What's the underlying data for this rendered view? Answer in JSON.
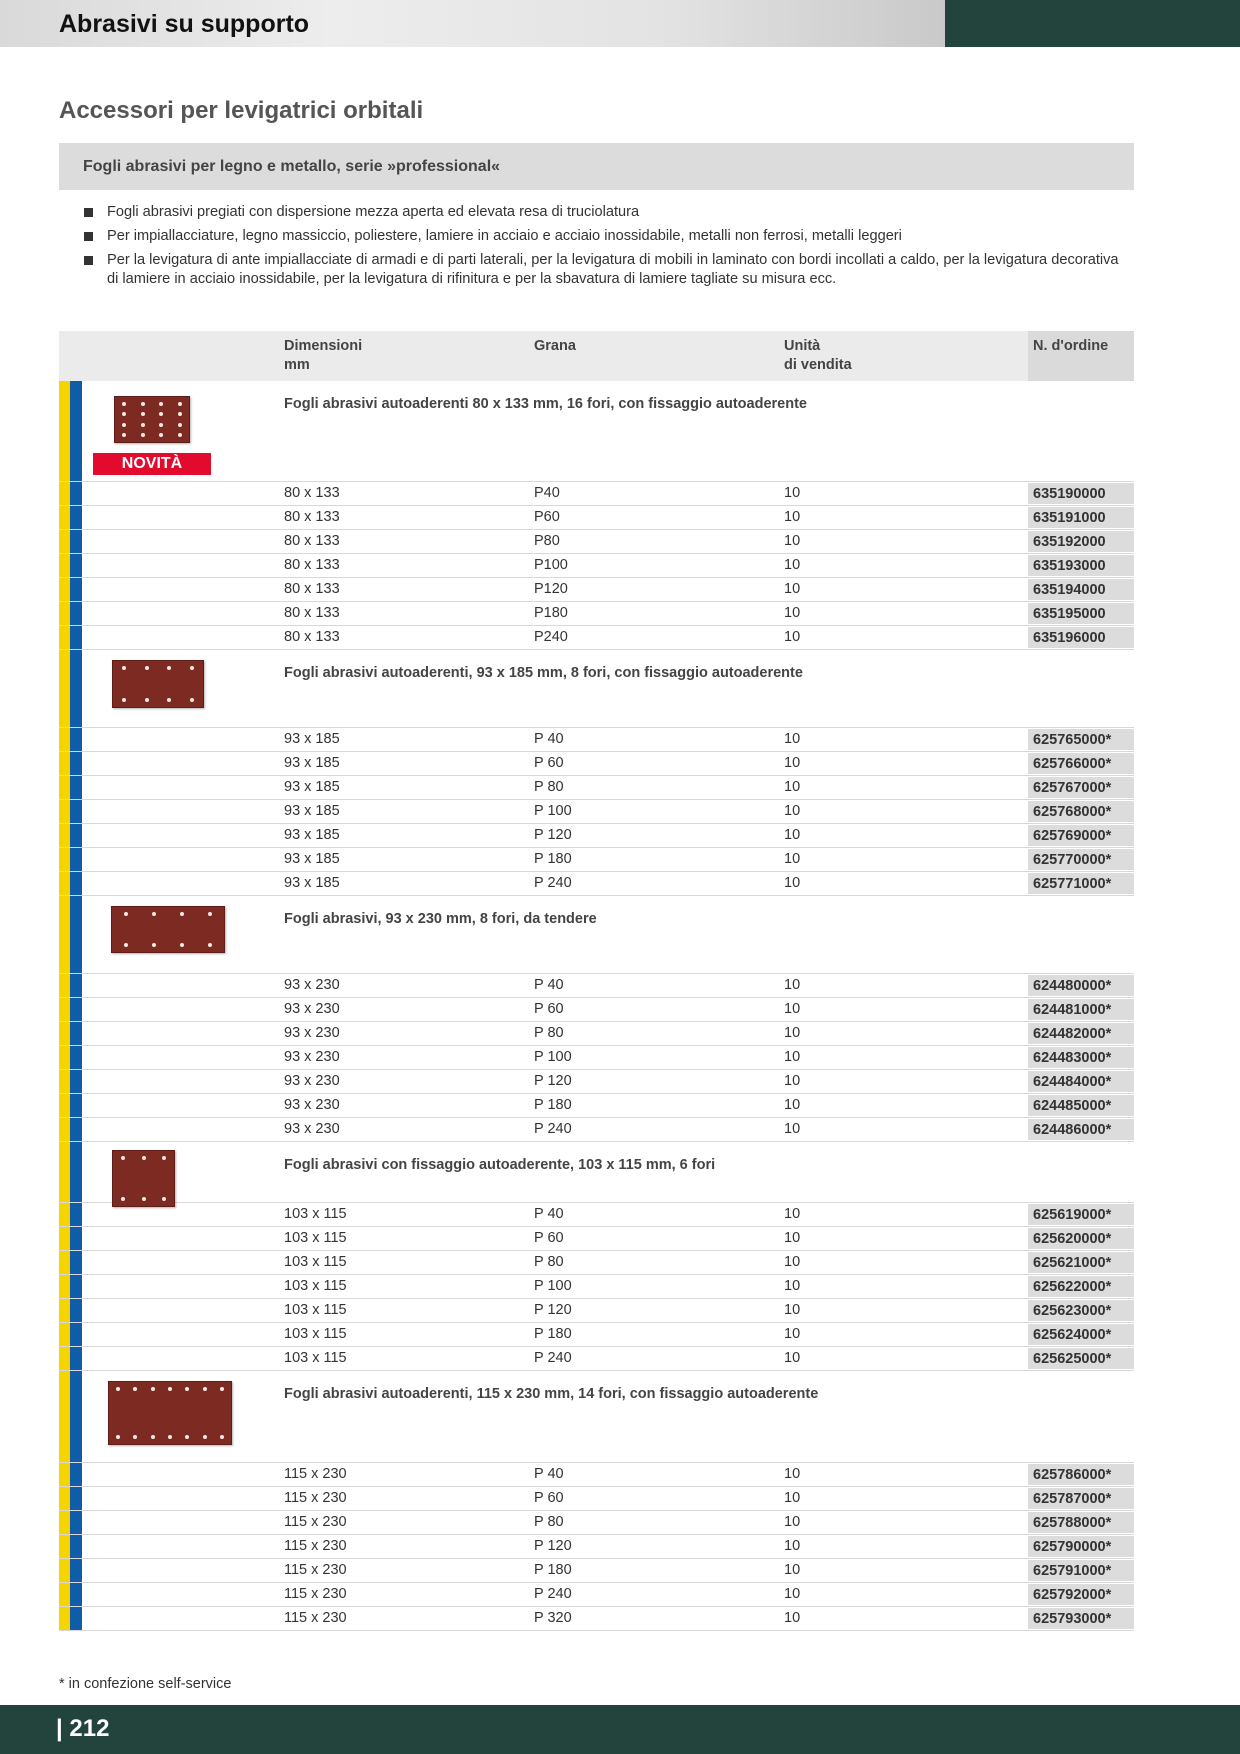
{
  "header": {
    "section_title": "Abrasivi su supporto",
    "page_heading": "Accessori per levigatrici orbitali",
    "subtitle": "Fogli abrasivi per legno e metallo, serie »professional«"
  },
  "bullets": [
    "Fogli abrasivi pregiati con dispersione mezza aperta ed elevata resa di truciolatura",
    "Per impiallacciature, legno massiccio, poliestere, lamiere in acciaio e acciaio inossidabile, metalli non ferrosi, metalli leggeri",
    "Per la levigatura di ante impiallacciate di armadi e di parti laterali, per la levigatura di mobili in laminato con bordi incollati a caldo, per la levigatura decorativa di lamiere in acciaio inossidabile, per la levigatura di rifinitura e per la sbavatura di lamiere tagliate su misura ecc."
  ],
  "table": {
    "headers": {
      "dimensions": "Dimensioni",
      "dimensions_unit": "mm",
      "grit": "Grana",
      "unit": "Unità",
      "unit_line2": "di vendita",
      "order": "N. d'ordine"
    },
    "sections": [
      {
        "title": "Fogli abrasivi autoaderenti 80 x 133 mm, 16 fori, con fissaggio autoaderente",
        "badge": "NOVITÀ",
        "rows": [
          [
            "80 x 133",
            "P40",
            "10",
            "635190000"
          ],
          [
            "80 x 133",
            "P60",
            "10",
            "635191000"
          ],
          [
            "80 x 133",
            "P80",
            "10",
            "635192000"
          ],
          [
            "80 x 133",
            "P100",
            "10",
            "635193000"
          ],
          [
            "80 x 133",
            "P120",
            "10",
            "635194000"
          ],
          [
            "80 x 133",
            "P180",
            "10",
            "635195000"
          ],
          [
            "80 x 133",
            "P240",
            "10",
            "635196000"
          ]
        ]
      },
      {
        "title": "Fogli abrasivi autoaderenti, 93 x 185 mm, 8 fori, con fissaggio autoaderente",
        "rows": [
          [
            "93 x 185",
            "P 40",
            "10",
            "625765000*"
          ],
          [
            "93 x 185",
            "P 60",
            "10",
            "625766000*"
          ],
          [
            "93 x 185",
            "P 80",
            "10",
            "625767000*"
          ],
          [
            "93 x 185",
            "P 100",
            "10",
            "625768000*"
          ],
          [
            "93 x 185",
            "P 120",
            "10",
            "625769000*"
          ],
          [
            "93 x 185",
            "P 180",
            "10",
            "625770000*"
          ],
          [
            "93 x 185",
            "P 240",
            "10",
            "625771000*"
          ]
        ]
      },
      {
        "title": "Fogli abrasivi, 93 x 230 mm, 8 fori, da tendere",
        "rows": [
          [
            "93 x 230",
            "P 40",
            "10",
            "624480000*"
          ],
          [
            "93 x 230",
            "P 60",
            "10",
            "624481000*"
          ],
          [
            "93 x 230",
            "P 80",
            "10",
            "624482000*"
          ],
          [
            "93 x 230",
            "P 100",
            "10",
            "624483000*"
          ],
          [
            "93 x 230",
            "P 120",
            "10",
            "624484000*"
          ],
          [
            "93 x 230",
            "P 180",
            "10",
            "624485000*"
          ],
          [
            "93 x 230",
            "P 240",
            "10",
            "624486000*"
          ]
        ]
      },
      {
        "title": "Fogli abrasivi con fissaggio autoaderente, 103 x 115 mm, 6 fori",
        "rows": [
          [
            "103 x 115",
            "P 40",
            "10",
            "625619000*"
          ],
          [
            "103 x 115",
            "P 60",
            "10",
            "625620000*"
          ],
          [
            "103 x 115",
            "P 80",
            "10",
            "625621000*"
          ],
          [
            "103 x 115",
            "P 100",
            "10",
            "625622000*"
          ],
          [
            "103 x 115",
            "P 120",
            "10",
            "625623000*"
          ],
          [
            "103 x 115",
            "P 180",
            "10",
            "625624000*"
          ],
          [
            "103 x 115",
            "P 240",
            "10",
            "625625000*"
          ]
        ]
      },
      {
        "title": "Fogli abrasivi autoaderenti, 115 x 230 mm, 14 fori, con fissaggio autoaderente",
        "rows": [
          [
            "115 x 230",
            "P 40",
            "10",
            "625786000*"
          ],
          [
            "115 x 230",
            "P 60",
            "10",
            "625787000*"
          ],
          [
            "115 x 230",
            "P 80",
            "10",
            "625788000*"
          ],
          [
            "115 x 230",
            "P 120",
            "10",
            "625790000*"
          ],
          [
            "115 x 230",
            "P 180",
            "10",
            "625791000*"
          ],
          [
            "115 x 230",
            "P 240",
            "10",
            "625792000*"
          ],
          [
            "115 x 230",
            "P 320",
            "10",
            "625793000*"
          ]
        ]
      }
    ]
  },
  "footnote": "* in confezione self-service",
  "page_number": "| 212",
  "colors": {
    "dark_green": "#23443d",
    "yellow_stripe": "#f5d400",
    "blue_stripe": "#0f5ca8",
    "badge_red": "#e30b2d",
    "sandpaper": "#7d2a22"
  }
}
